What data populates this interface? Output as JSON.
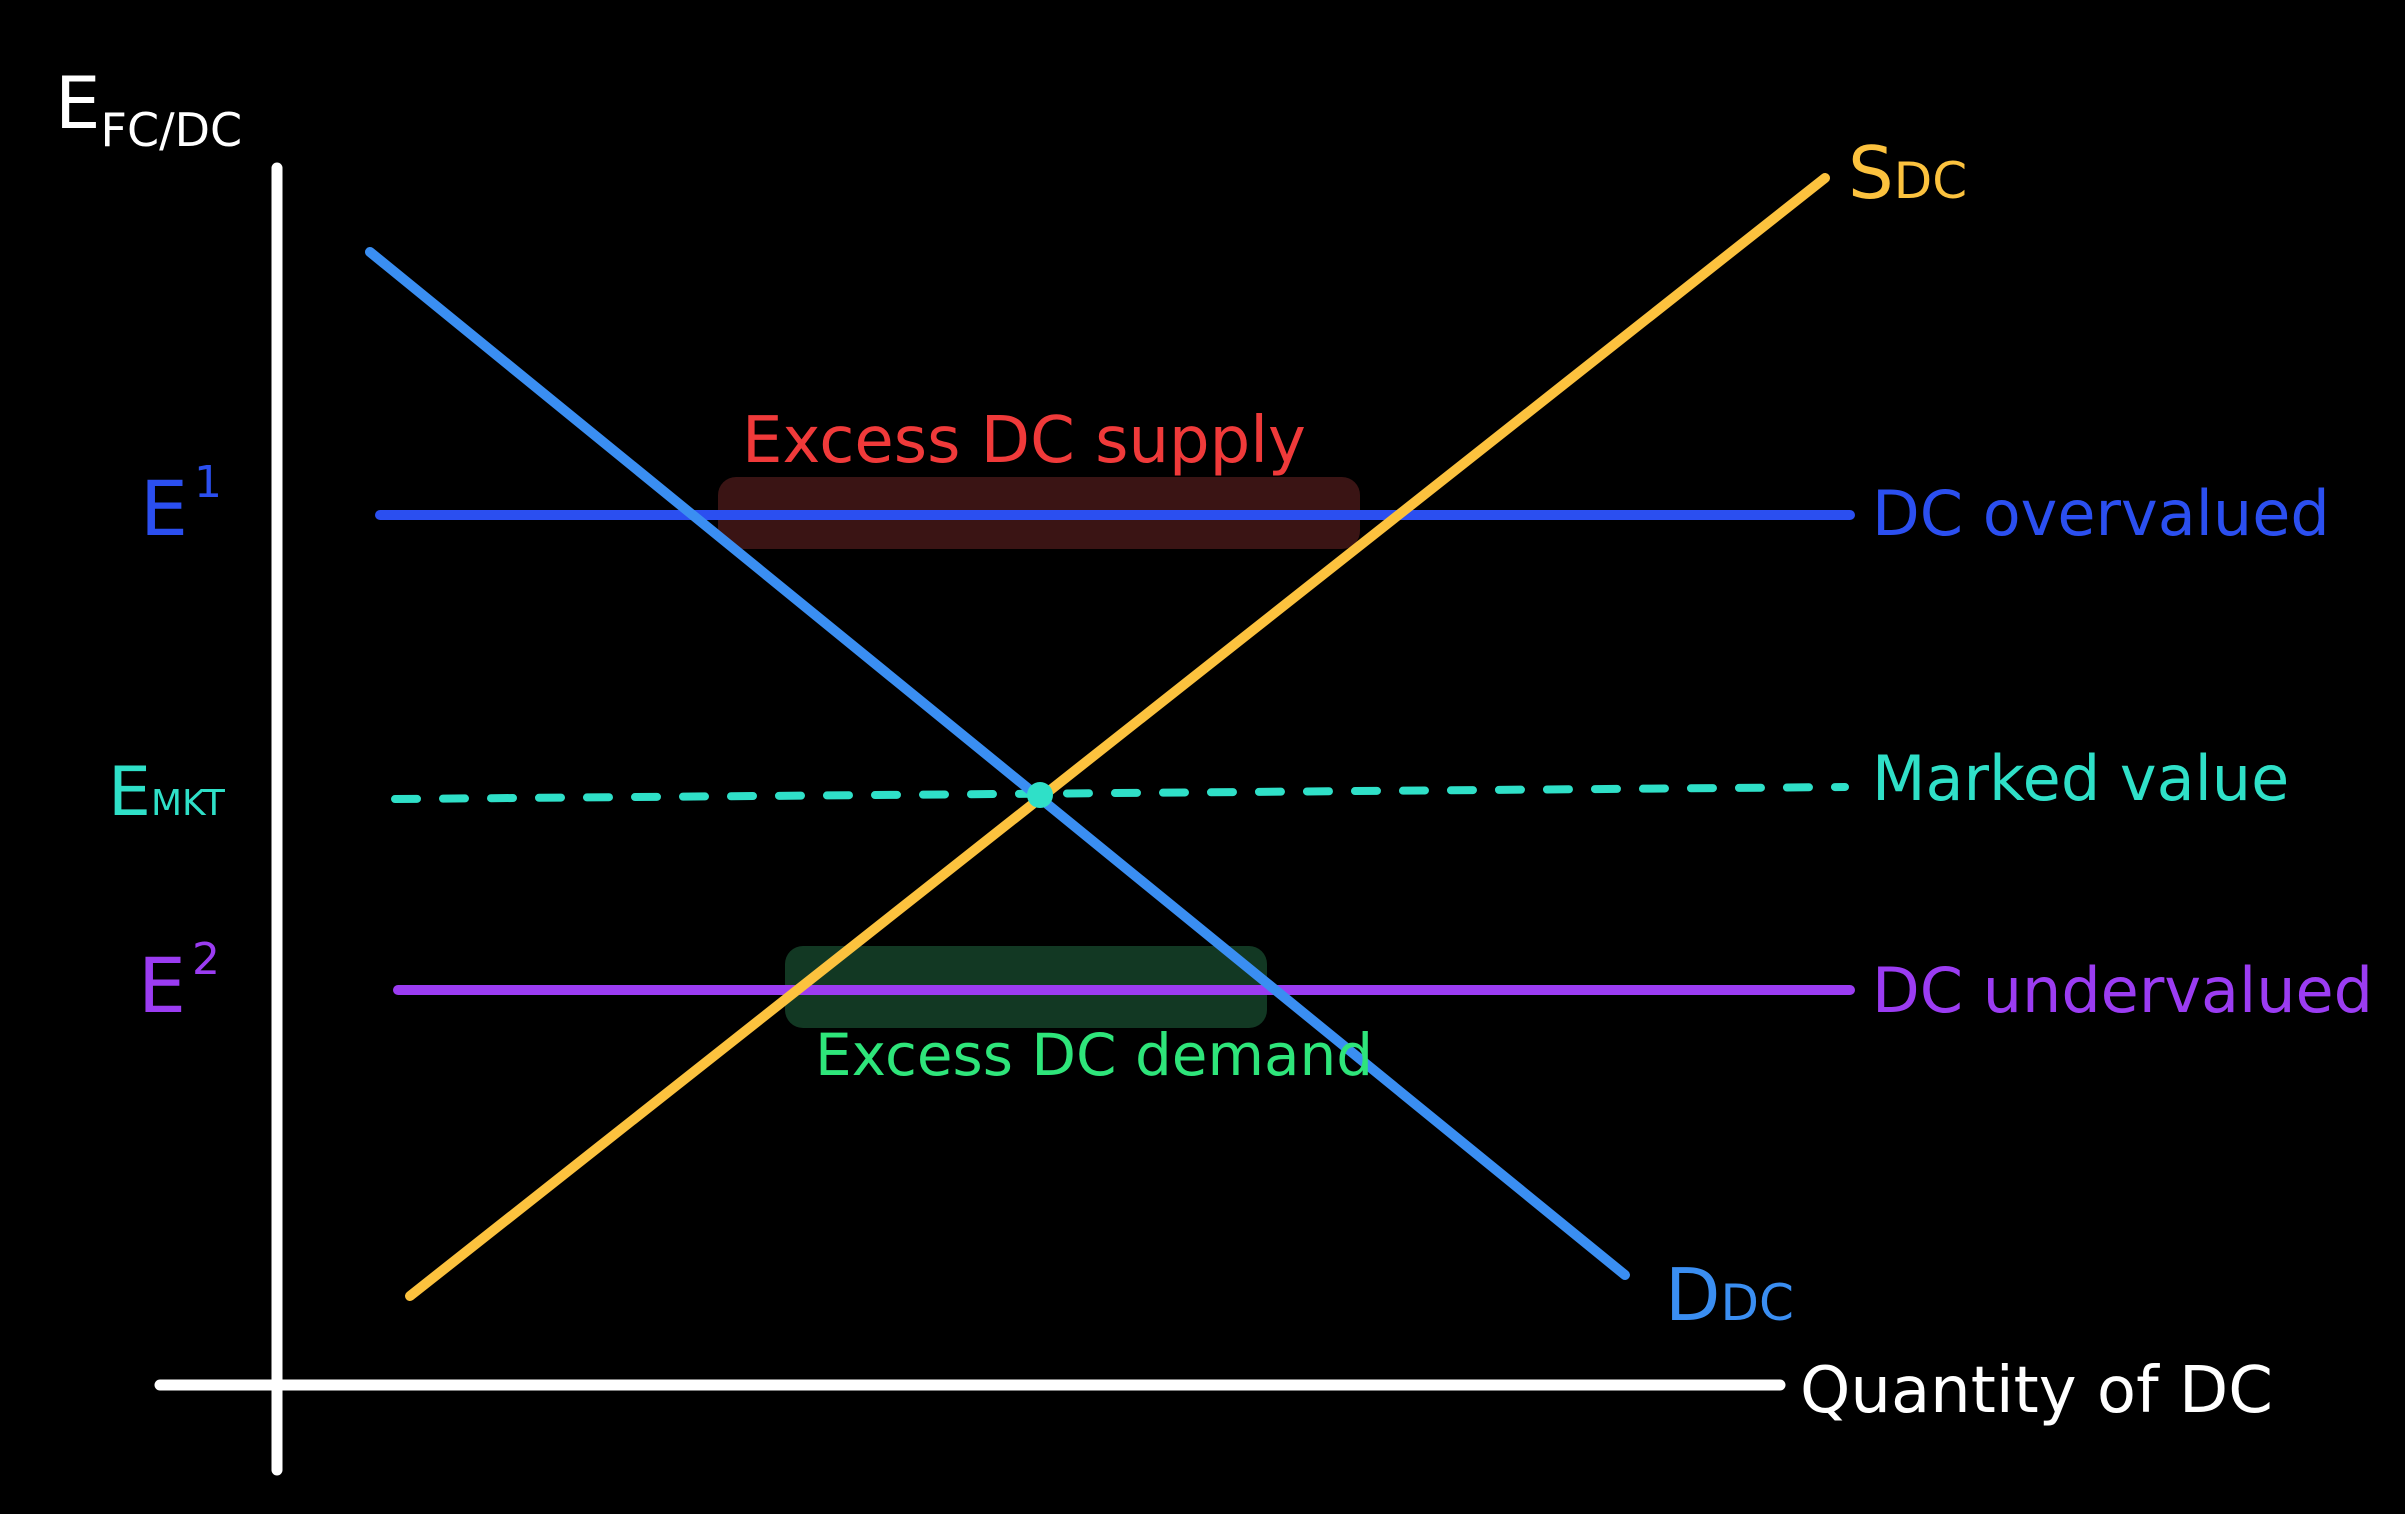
{
  "axes": {
    "y_label_main": "E",
    "y_label_sub": "FC/DC",
    "x_label": "Quantity of DC"
  },
  "curves": {
    "supply": {
      "main": "S",
      "sub": "DC"
    },
    "demand": {
      "main": "D",
      "sub": "DC"
    }
  },
  "levels": {
    "e1": {
      "main": "E",
      "sup": "1",
      "label": "DC overvalued"
    },
    "emkt": {
      "main": "E",
      "sub": "MKT",
      "label": "Marked value"
    },
    "e2": {
      "main": "E",
      "sup": "2",
      "label": "DC undervalued"
    }
  },
  "annotations": {
    "excess_supply": "Excess DC supply",
    "excess_demand": "Excess DC demand"
  },
  "colors": {
    "background": "#000000",
    "axes": "#ffffff",
    "supply": "#fcc23e",
    "demand": "#3a8ef2",
    "e1": "#2b4ff0",
    "emkt": "#2fe0c8",
    "e2": "#9b3cf2",
    "excess_supply_text": "#f03a3a",
    "excess_supply_fill": "#3a1414",
    "excess_demand_text": "#2ee57a",
    "excess_demand_fill": "#123823"
  }
}
